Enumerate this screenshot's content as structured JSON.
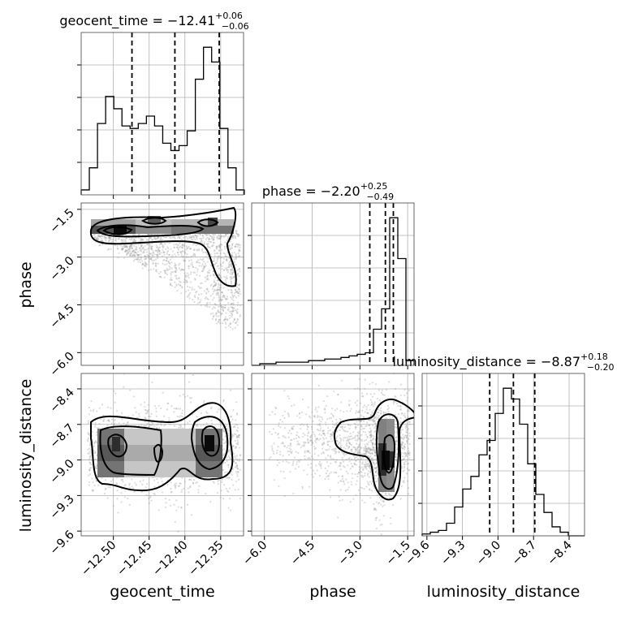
{
  "chart_data": {
    "type": "corner",
    "parameters": [
      {
        "name": "geocent_time",
        "label": "geocent_time",
        "title": {
          "text": "geocent_time = −12.41",
          "sup": "+0.06",
          "sub": "−0.06"
        },
        "range": [
          -12.545,
          -12.318
        ],
        "ticks": [
          -12.5,
          -12.45,
          -12.4,
          -12.35
        ],
        "tick_labels": [
          "−12.50",
          "−12.45",
          "−12.40",
          "−12.35"
        ],
        "quantiles": [
          -12.474,
          -12.414,
          -12.352
        ]
      },
      {
        "name": "phase",
        "label": "phase",
        "title": {
          "text": "phase = −2.20",
          "sup": "+0.25",
          "sub": "−0.49"
        },
        "range": [
          -6.4,
          -1.3
        ],
        "ticks": [
          -6.0,
          -4.5,
          -3.0,
          -1.5
        ],
        "tick_labels": [
          "−6.0",
          "−4.5",
          "−3.0",
          "−1.5"
        ],
        "quantiles": [
          -2.69,
          -2.2,
          -1.95
        ]
      },
      {
        "name": "luminosity_distance",
        "label": "luminosity_distance",
        "title": {
          "text": "luminosity_distance = −8.87",
          "sup": "+0.18",
          "sub": "−0.20"
        },
        "range": [
          -9.64,
          -8.27
        ],
        "ticks": [
          -9.6,
          -9.3,
          -9.0,
          -8.7,
          -8.4
        ],
        "tick_labels": [
          "−9.6",
          "−9.3",
          "−9.0",
          "−8.7",
          "−8.4"
        ],
        "quantiles": [
          -9.07,
          -8.87,
          -8.69
        ]
      }
    ],
    "histograms": [
      {
        "param": "geocent_time",
        "edges_start": -12.545,
        "bin_width": 0.0114,
        "counts": [
          2,
          11,
          29,
          40,
          35,
          28,
          27,
          29,
          32,
          28,
          21,
          18,
          20,
          26,
          47,
          60,
          54,
          27,
          11,
          2
        ]
      },
      {
        "param": "phase",
        "edges_start": -6.4,
        "bin_width": 0.255,
        "counts": [
          0,
          1,
          1,
          2,
          2,
          2,
          2,
          3,
          3,
          4,
          4,
          5,
          6,
          7,
          8,
          23,
          36,
          94,
          68,
          3
        ]
      },
      {
        "param": "luminosity_distance",
        "edges_start": -9.64,
        "bin_width": 0.0685,
        "counts": [
          1,
          2,
          3,
          7,
          16,
          26,
          33,
          45,
          53,
          68,
          82,
          76,
          62,
          40,
          23,
          13,
          5,
          2,
          0,
          0
        ]
      }
    ],
    "grid": true
  }
}
